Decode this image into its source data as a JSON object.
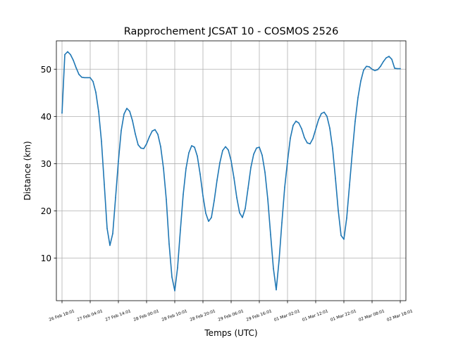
{
  "chart_data": {
    "type": "line",
    "title": "Rapprochement JCSAT 10 - COSMOS 2526",
    "xlabel": "Temps (UTC)",
    "ylabel": "Distance (km)",
    "ylim": [
      1,
      56
    ],
    "xlim": [
      -0.1,
      6.1
    ],
    "grid": true,
    "line_color": "#1f77b4",
    "x_ticks": [
      {
        "pos": 0,
        "label": "26 Feb 18:01"
      },
      {
        "pos": 0.5,
        "label": "27 Feb 04:01"
      },
      {
        "pos": 1,
        "label": "27 Feb 14:01"
      },
      {
        "pos": 1.5,
        "label": "28 Feb 00:01"
      },
      {
        "pos": 2,
        "label": "28 Feb 10:01"
      },
      {
        "pos": 2.5,
        "label": "28 Feb 20:01"
      },
      {
        "pos": 3,
        "label": "29 Feb 06:01"
      },
      {
        "pos": 3.5,
        "label": "29 Feb 16:01"
      },
      {
        "pos": 4,
        "label": "01 Mar 02:01"
      },
      {
        "pos": 4.5,
        "label": "01 Mar 12:01"
      },
      {
        "pos": 5,
        "label": "01 Mar 22:01"
      },
      {
        "pos": 5.5,
        "label": "02 Mar 08:01"
      },
      {
        "pos": 6,
        "label": "02 Mar 18:01"
      }
    ],
    "y_ticks": [
      10,
      20,
      30,
      40,
      50
    ],
    "x": [
      0,
      0.05,
      0.1,
      0.15,
      0.2,
      0.25,
      0.3,
      0.35,
      0.4,
      0.45,
      0.5,
      0.55,
      0.6,
      0.65,
      0.7,
      0.75,
      0.8,
      0.85,
      0.9,
      0.95,
      1.0,
      1.05,
      1.1,
      1.15,
      1.2,
      1.25,
      1.3,
      1.35,
      1.4,
      1.45,
      1.5,
      1.55,
      1.6,
      1.65,
      1.7,
      1.75,
      1.8,
      1.85,
      1.9,
      1.95,
      2.0,
      2.05,
      2.1,
      2.15,
      2.2,
      2.25,
      2.3,
      2.35,
      2.4,
      2.45,
      2.5,
      2.55,
      2.6,
      2.65,
      2.7,
      2.75,
      2.8,
      2.85,
      2.9,
      2.95,
      3.0,
      3.05,
      3.1,
      3.15,
      3.2,
      3.25,
      3.3,
      3.35,
      3.4,
      3.45,
      3.5,
      3.55,
      3.6,
      3.65,
      3.7,
      3.75,
      3.8,
      3.85,
      3.9,
      3.95,
      4.0,
      4.05,
      4.1,
      4.15,
      4.2,
      4.25,
      4.3,
      4.35,
      4.4,
      4.45,
      4.5,
      4.55,
      4.6,
      4.65,
      4.7,
      4.75,
      4.8,
      4.85,
      4.9,
      4.95,
      5.0,
      5.05,
      5.1,
      5.15,
      5.2,
      5.25,
      5.3,
      5.35,
      5.4,
      5.45,
      5.5,
      5.55,
      5.6,
      5.65,
      5.7,
      5.75,
      5.8,
      5.85,
      5.9,
      5.95,
      6.0
    ],
    "y": [
      40.7,
      53.1,
      53.7,
      53.1,
      51.9,
      50.3,
      48.9,
      48.3,
      48.2,
      48.2,
      48.2,
      47.4,
      45.1,
      41.0,
      34.7,
      25.6,
      16.3,
      12.7,
      15.2,
      22.8,
      30.5,
      37.0,
      40.5,
      41.7,
      41.1,
      39.1,
      36.3,
      34.0,
      33.3,
      33.2,
      34.2,
      35.7,
      36.9,
      37.2,
      36.2,
      33.6,
      29.0,
      22.4,
      13.0,
      6.0,
      3.1,
      8.0,
      16.0,
      23.5,
      29.0,
      32.3,
      33.8,
      33.5,
      31.6,
      27.8,
      23.2,
      19.5,
      17.8,
      18.6,
      22.2,
      26.5,
      30.2,
      32.8,
      33.6,
      32.9,
      30.6,
      27.0,
      22.8,
      19.6,
      18.6,
      20.5,
      24.8,
      29.2,
      32.0,
      33.3,
      33.5,
      31.8,
      28.2,
      22.5,
      15.0,
      7.8,
      3.3,
      9.5,
      17.5,
      25.0,
      30.5,
      35.4,
      38.1,
      39.0,
      38.6,
      37.4,
      35.5,
      34.4,
      34.2,
      35.3,
      37.3,
      39.3,
      40.6,
      40.9,
      40.0,
      37.5,
      33.2,
      26.9,
      20.1,
      14.8,
      14.0,
      18.5,
      25.5,
      32.5,
      39.0,
      44.0,
      47.5,
      49.8,
      50.6,
      50.5,
      50.0,
      49.7,
      49.9,
      50.6,
      51.6,
      52.4,
      52.7,
      52.1,
      50.2,
      50.1,
      50.1
    ]
  }
}
